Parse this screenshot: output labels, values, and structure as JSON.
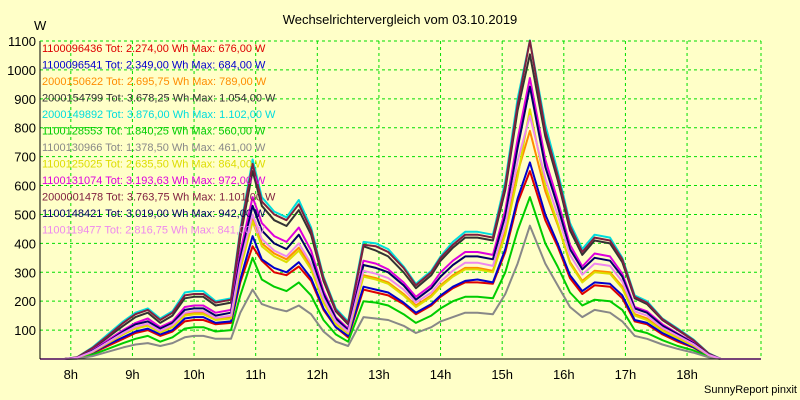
{
  "chart_data": {
    "type": "line",
    "title": "Wechselrichtervergleich vom 03.10.2019",
    "ylabel": "W",
    "xlabel": "",
    "footer": "SunnyReport pinxit",
    "ylim": [
      0,
      1100
    ],
    "xlim": [
      7.5,
      19.2
    ],
    "yticks": [
      100,
      200,
      300,
      400,
      500,
      600,
      700,
      800,
      900,
      1000,
      1100
    ],
    "xticks": [
      8,
      9,
      10,
      11,
      12,
      13,
      14,
      15,
      16,
      17,
      18
    ],
    "xtick_labels": [
      "8h",
      "9h",
      "10h",
      "11h",
      "12h",
      "13h",
      "14h",
      "15h",
      "16h",
      "17h",
      "18h"
    ],
    "grid": true,
    "legend_position": "top-left",
    "background_color": "#ffffc8",
    "grid_color": "#00dd00",
    "x": [
      7.5,
      7.9,
      8.1,
      8.35,
      8.6,
      8.85,
      9.05,
      9.25,
      9.45,
      9.65,
      9.85,
      10.0,
      10.15,
      10.35,
      10.6,
      10.75,
      10.95,
      11.1,
      11.3,
      11.5,
      11.7,
      11.9,
      12.1,
      12.3,
      12.5,
      12.75,
      12.95,
      13.15,
      13.4,
      13.6,
      13.85,
      14.0,
      14.2,
      14.4,
      14.6,
      14.85,
      15.05,
      15.25,
      15.45,
      15.7,
      15.9,
      16.1,
      16.3,
      16.5,
      16.75,
      16.95,
      17.15,
      17.35,
      17.6,
      17.85,
      18.1,
      18.35,
      18.55,
      18.75,
      18.9,
      19.2
    ],
    "series": [
      {
        "name": "1100096436",
        "label": "1100096436 Tot: 2.274,00 Wh Max: 676,00 W",
        "color": "#dd0000",
        "values": [
          0,
          0,
          3,
          20,
          45,
          70,
          90,
          100,
          80,
          95,
          130,
          135,
          135,
          120,
          125,
          265,
          390,
          340,
          300,
          290,
          320,
          270,
          170,
          110,
          75,
          240,
          230,
          220,
          190,
          155,
          185,
          215,
          245,
          265,
          265,
          260,
          370,
          540,
          650,
          480,
          390,
          280,
          225,
          255,
          250,
          210,
          130,
          120,
          85,
          60,
          40,
          10,
          0,
          0,
          0,
          0
        ]
      },
      {
        "name": "1100096541",
        "label": "1100096541 Tot: 2.349,00 Wh Max: 684,00 W",
        "color": "#0000cc",
        "values": [
          0,
          0,
          3,
          22,
          50,
          75,
          95,
          105,
          85,
          100,
          140,
          145,
          145,
          125,
          130,
          275,
          425,
          345,
          315,
          300,
          335,
          280,
          175,
          110,
          80,
          250,
          240,
          230,
          195,
          160,
          190,
          220,
          250,
          270,
          275,
          265,
          380,
          555,
          680,
          500,
          400,
          290,
          235,
          265,
          260,
          220,
          135,
          125,
          90,
          65,
          42,
          12,
          0,
          0,
          0,
          0
        ]
      },
      {
        "name": "2000150622",
        "label": "2000150622 Tot: 2.695,75 Wh Max: 789,00 W",
        "color": "#ff8c00",
        "values": [
          0,
          0,
          4,
          25,
          55,
          85,
          110,
          120,
          95,
          115,
          155,
          160,
          160,
          140,
          145,
          320,
          490,
          400,
          365,
          345,
          385,
          320,
          200,
          125,
          90,
          290,
          280,
          265,
          225,
          185,
          220,
          255,
          290,
          315,
          315,
          305,
          440,
          645,
          789,
          580,
          465,
          335,
          270,
          305,
          300,
          250,
          155,
          140,
          100,
          75,
          48,
          14,
          0,
          0,
          0,
          0
        ]
      },
      {
        "name": "2000154799",
        "label": "2000154799 Tot: 3.678,25 Wh Max: 1.054,00 W",
        "color": "#333333",
        "values": [
          0,
          0,
          5,
          35,
          75,
          115,
          145,
          160,
          125,
          150,
          210,
          215,
          215,
          185,
          195,
          420,
          650,
          530,
          480,
          460,
          515,
          430,
          270,
          165,
          120,
          390,
          375,
          355,
          300,
          245,
          290,
          340,
          385,
          420,
          420,
          410,
          585,
          860,
          1054,
          770,
          620,
          445,
          360,
          410,
          400,
          335,
          210,
          190,
          135,
          100,
          65,
          18,
          0,
          0,
          0,
          0
        ]
      },
      {
        "name": "2000149892",
        "label": "2000149892 Tot: 3.876,00 Wh Max: 1.102,00 W",
        "color": "#00dddd",
        "values": [
          0,
          0,
          6,
          40,
          85,
          130,
          160,
          175,
          140,
          165,
          230,
          235,
          235,
          200,
          210,
          450,
          690,
          560,
          510,
          490,
          550,
          455,
          285,
          175,
          130,
          405,
          400,
          380,
          320,
          260,
          305,
          355,
          405,
          440,
          440,
          430,
          615,
          900,
          1102,
          810,
          650,
          470,
          380,
          430,
          420,
          350,
          220,
          200,
          140,
          105,
          68,
          20,
          0,
          0,
          0,
          0
        ]
      },
      {
        "name": "1100128553",
        "label": "1100128553 Tot: 1.840,25 Wh Max: 560,00 W",
        "color": "#00cc00",
        "values": [
          0,
          0,
          2,
          15,
          35,
          55,
          70,
          80,
          60,
          75,
          105,
          110,
          110,
          95,
          100,
          220,
          350,
          275,
          250,
          235,
          265,
          220,
          135,
          85,
          60,
          200,
          195,
          185,
          155,
          125,
          150,
          175,
          200,
          215,
          215,
          210,
          300,
          445,
          560,
          400,
          320,
          230,
          185,
          205,
          200,
          170,
          100,
          90,
          65,
          45,
          30,
          8,
          0,
          0,
          0,
          0
        ]
      },
      {
        "name": "1100130966",
        "label": "1100130966 Tot: 1.378,50 Wh Max: 461,00 W",
        "color": "#888888",
        "values": [
          0,
          0,
          1,
          10,
          25,
          40,
          50,
          55,
          45,
          55,
          75,
          80,
          80,
          70,
          70,
          160,
          240,
          190,
          175,
          165,
          185,
          155,
          95,
          60,
          45,
          145,
          140,
          135,
          115,
          90,
          110,
          130,
          145,
          160,
          160,
          155,
          225,
          330,
          461,
          330,
          255,
          180,
          145,
          170,
          160,
          130,
          80,
          70,
          50,
          35,
          22,
          6,
          0,
          0,
          0,
          0
        ]
      },
      {
        "name": "1100125025",
        "label": "1100125025 Tot: 2.635,50 Wh Max: 864,00 W",
        "color": "#dddd00",
        "values": [
          0,
          0,
          4,
          24,
          55,
          85,
          105,
          115,
          92,
          110,
          150,
          155,
          155,
          135,
          140,
          310,
          475,
          390,
          355,
          335,
          375,
          310,
          195,
          120,
          88,
          285,
          275,
          260,
          220,
          180,
          215,
          250,
          285,
          310,
          310,
          300,
          430,
          630,
          864,
          600,
          470,
          330,
          265,
          300,
          295,
          245,
          150,
          135,
          98,
          72,
          46,
          13,
          0,
          0,
          0,
          0
        ]
      },
      {
        "name": "1100131074",
        "label": "1100131074 Tot: 3.193,63 Wh Max: 972,00 W",
        "color": "#dd00dd",
        "values": [
          0,
          0,
          5,
          30,
          65,
          100,
          125,
          140,
          110,
          130,
          180,
          185,
          185,
          160,
          170,
          370,
          560,
          470,
          425,
          405,
          455,
          375,
          235,
          145,
          105,
          340,
          330,
          310,
          265,
          215,
          255,
          300,
          340,
          370,
          370,
          360,
          515,
          760,
          972,
          690,
          550,
          395,
          320,
          365,
          355,
          295,
          180,
          165,
          120,
          88,
          58,
          16,
          0,
          0,
          0,
          0
        ]
      },
      {
        "name": "2000001478",
        "label": "2000001478 Tot: 3.763,75 Wh Max: 1.101,00 W",
        "color": "#802040",
        "values": [
          0,
          0,
          6,
          38,
          80,
          125,
          155,
          170,
          135,
          160,
          220,
          225,
          225,
          195,
          205,
          440,
          675,
          545,
          500,
          480,
          535,
          445,
          280,
          170,
          125,
          395,
          390,
          370,
          315,
          255,
          300,
          350,
          395,
          430,
          430,
          420,
          600,
          880,
          1101,
          790,
          635,
          460,
          370,
          420,
          410,
          345,
          215,
          195,
          138,
          102,
          66,
          19,
          0,
          0,
          0,
          0
        ]
      },
      {
        "name": "1100148421",
        "label": "1100148421 Tot: 3.019,00 Wh Max: 942,00 W",
        "color": "#000066",
        "values": [
          0,
          0,
          4,
          28,
          60,
          95,
          120,
          130,
          105,
          125,
          170,
          175,
          175,
          150,
          160,
          350,
          530,
          445,
          400,
          380,
          430,
          355,
          225,
          140,
          100,
          325,
          315,
          300,
          255,
          205,
          245,
          285,
          325,
          355,
          355,
          345,
          495,
          730,
          942,
          665,
          530,
          380,
          310,
          350,
          340,
          285,
          175,
          160,
          115,
          85,
          55,
          15,
          0,
          0,
          0,
          0
        ]
      },
      {
        "name": "1100119477",
        "label": "1100119477 Tot: 2.816,75 Wh Max: 841,00 W",
        "color": "#ee88ee",
        "values": [
          0,
          0,
          4,
          26,
          58,
          90,
          112,
          122,
          98,
          118,
          160,
          165,
          165,
          142,
          150,
          330,
          500,
          415,
          375,
          355,
          400,
          330,
          210,
          130,
          94,
          305,
          295,
          280,
          240,
          195,
          230,
          268,
          305,
          333,
          333,
          322,
          465,
          685,
          841,
          625,
          500,
          360,
          292,
          330,
          322,
          268,
          165,
          150,
          108,
          80,
          52,
          14,
          0,
          0,
          0,
          0
        ]
      }
    ]
  }
}
